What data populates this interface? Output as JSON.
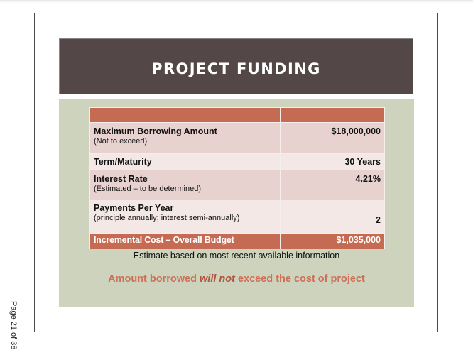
{
  "slide": {
    "title": "PROJECT FUNDING",
    "colors": {
      "title_bg": "#534847",
      "panel_bg": "#cdd3bd",
      "header_row": "#c66b53",
      "row_dark": "#e8d2cf",
      "row_light": "#f3e8e6",
      "emphasis_text": "#cf6f57"
    },
    "table": {
      "header": [
        "",
        ""
      ],
      "rows": [
        {
          "label": "Maximum Borrowing Amount",
          "sublabel": "(Not to exceed)",
          "value": "$18,000,000"
        },
        {
          "label": "Term/Maturity",
          "sublabel": "",
          "value": "30 Years"
        },
        {
          "label": "Interest Rate",
          "sublabel": "(Estimated – to be determined)",
          "value": "4.21%"
        },
        {
          "label": "Payments Per Year",
          "sublabel": "(principle annually; interest semi-annually)",
          "value": "2"
        }
      ],
      "footer": {
        "label": "Incremental Cost – Overall Budget",
        "value": "$1,035,000"
      }
    },
    "note": "Estimate based on most recent available information",
    "emphasis": {
      "before": "Amount borrowed ",
      "underlined": "will not",
      "after": " exceed the cost of project"
    }
  },
  "page": {
    "label": "Page 21 of 38"
  }
}
